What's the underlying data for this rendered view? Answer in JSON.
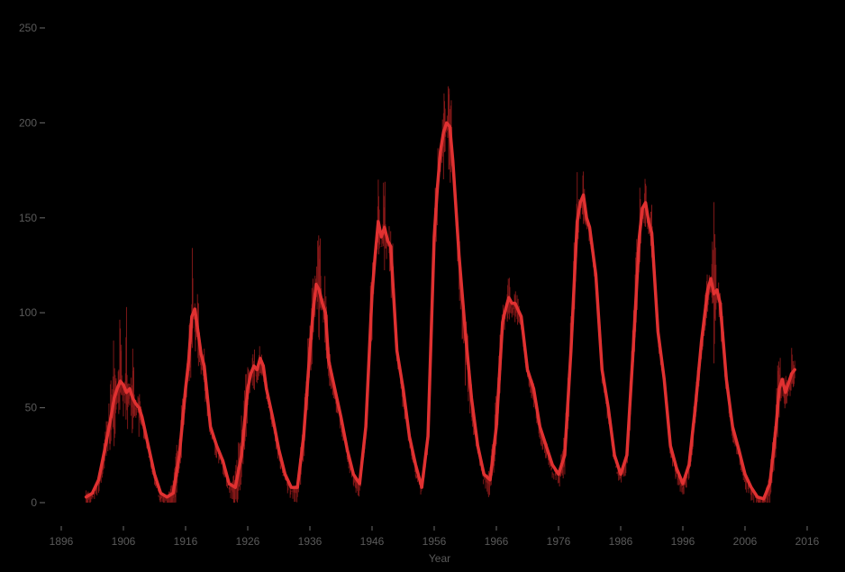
{
  "chart_data": {
    "type": "line",
    "title": "",
    "xlabel": "Year",
    "ylabel": "",
    "xlim": [
      1896,
      2016
    ],
    "ylim": [
      0,
      250
    ],
    "x_ticks": [
      1896,
      1906,
      1916,
      1926,
      1936,
      1946,
      1956,
      1966,
      1976,
      1986,
      1996,
      2006,
      2016
    ],
    "y_ticks": [
      0,
      50,
      100,
      150,
      200,
      250
    ],
    "grid": false,
    "legend": "none",
    "background": "#000000",
    "series": [
      {
        "style": "monthly",
        "color": "#8b1a1a",
        "x": [
          1900.0,
          1901.0,
          1902.0,
          1903.0,
          1904.0,
          1904.5,
          1905.0,
          1905.5,
          1906.0,
          1906.5,
          1907.0,
          1907.5,
          1908.0,
          1908.5,
          1909.0,
          1910.0,
          1911.0,
          1912.0,
          1913.0,
          1914.0,
          1915.0,
          1916.0,
          1916.5,
          1917.0,
          1917.5,
          1918.0,
          1918.5,
          1919.0,
          1920.0,
          1921.0,
          1922.0,
          1923.0,
          1924.0,
          1925.0,
          1926.0,
          1926.5,
          1927.0,
          1927.5,
          1928.0,
          1928.5,
          1929.0,
          1930.0,
          1931.0,
          1932.0,
          1933.0,
          1934.0,
          1935.0,
          1936.0,
          1936.5,
          1937.0,
          1937.5,
          1938.0,
          1938.5,
          1939.0,
          1940.0,
          1941.0,
          1942.0,
          1943.0,
          1944.0,
          1945.0,
          1946.0,
          1946.5,
          1947.0,
          1947.5,
          1948.0,
          1948.5,
          1949.0,
          1950.0,
          1951.0,
          1952.0,
          1953.0,
          1954.0,
          1955.0,
          1956.0,
          1956.5,
          1957.0,
          1957.5,
          1958.0,
          1958.5,
          1959.0,
          1960.0,
          1961.0,
          1962.0,
          1963.0,
          1964.0,
          1965.0,
          1966.0,
          1967.0,
          1967.5,
          1968.0,
          1968.5,
          1969.0,
          1970.0,
          1971.0,
          1972.0,
          1973.0,
          1974.0,
          1975.0,
          1976.0,
          1977.0,
          1978.0,
          1979.0,
          1979.5,
          1980.0,
          1980.5,
          1981.0,
          1982.0,
          1983.0,
          1984.0,
          1985.0,
          1986.0,
          1987.0,
          1988.0,
          1989.0,
          1989.5,
          1990.0,
          1990.5,
          1991.0,
          1992.0,
          1993.0,
          1994.0,
          1995.0,
          1996.0,
          1997.0,
          1998.0,
          1999.0,
          2000.0,
          2000.5,
          2001.0,
          2001.5,
          2002.0,
          2003.0,
          2004.0,
          2005.0,
          2006.0,
          2007.0,
          2008.0,
          2009.0,
          2010.0,
          2011.0,
          2011.5,
          2012.0,
          2012.5,
          2013.0,
          2013.5,
          2014.0
        ],
        "values": [
          10,
          1,
          12,
          36,
          72,
          92,
          55,
          105,
          42,
          108,
          50,
          88,
          40,
          65,
          48,
          22,
          8,
          2,
          3,
          12,
          50,
          62,
          85,
          152,
          68,
          120,
          60,
          88,
          40,
          28,
          20,
          6,
          18,
          48,
          78,
          60,
          95,
          58,
          90,
          70,
          55,
          38,
          20,
          12,
          5,
          12,
          50,
          105,
          130,
          120,
          160,
          98,
          130,
          85,
          62,
          48,
          22,
          14,
          10,
          38,
          140,
          118,
          175,
          120,
          195,
          128,
          165,
          80,
          68,
          28,
          15,
          5,
          40,
          160,
          190,
          170,
          230,
          195,
          250,
          175,
          110,
          60,
          40,
          25,
          10,
          20,
          60,
          110,
          98,
          125,
          95,
          115,
          100,
          70,
          65,
          38,
          35,
          15,
          15,
          40,
          100,
          175,
          148,
          180,
          140,
          150,
          110,
          65,
          40,
          18,
          10,
          28,
          100,
          170,
          148,
          175,
          138,
          165,
          90,
          60,
          28,
          15,
          8,
          25,
          60,
          90,
          125,
          118,
          165,
          110,
          125,
          65,
          40,
          28,
          15,
          8,
          4,
          2,
          18,
          55,
          92,
          60,
          75,
          55,
          85,
          75
        ]
      },
      {
        "style": "smoothed",
        "color": "#e03131",
        "x": [
          1900.0,
          1901.0,
          1902.0,
          1903.0,
          1904.0,
          1904.5,
          1905.0,
          1905.5,
          1906.0,
          1906.5,
          1907.0,
          1907.5,
          1908.0,
          1908.5,
          1909.0,
          1910.0,
          1911.0,
          1912.0,
          1913.0,
          1914.0,
          1915.0,
          1916.0,
          1916.5,
          1917.0,
          1917.5,
          1918.0,
          1918.5,
          1919.0,
          1920.0,
          1921.0,
          1922.0,
          1923.0,
          1924.0,
          1925.0,
          1926.0,
          1926.5,
          1927.0,
          1927.5,
          1928.0,
          1928.5,
          1929.0,
          1930.0,
          1931.0,
          1932.0,
          1933.0,
          1934.0,
          1935.0,
          1936.0,
          1936.5,
          1937.0,
          1937.5,
          1938.0,
          1938.5,
          1939.0,
          1940.0,
          1941.0,
          1942.0,
          1943.0,
          1944.0,
          1945.0,
          1946.0,
          1946.5,
          1947.0,
          1947.5,
          1948.0,
          1948.5,
          1949.0,
          1950.0,
          1951.0,
          1952.0,
          1953.0,
          1954.0,
          1955.0,
          1956.0,
          1956.5,
          1957.0,
          1957.5,
          1958.0,
          1958.5,
          1959.0,
          1960.0,
          1961.0,
          1962.0,
          1963.0,
          1964.0,
          1965.0,
          1966.0,
          1967.0,
          1967.5,
          1968.0,
          1968.5,
          1969.0,
          1970.0,
          1971.0,
          1972.0,
          1973.0,
          1974.0,
          1975.0,
          1976.0,
          1977.0,
          1978.0,
          1979.0,
          1979.5,
          1980.0,
          1980.5,
          1981.0,
          1982.0,
          1983.0,
          1984.0,
          1985.0,
          1986.0,
          1987.0,
          1988.0,
          1989.0,
          1989.5,
          1990.0,
          1990.5,
          1991.0,
          1992.0,
          1993.0,
          1994.0,
          1995.0,
          1996.0,
          1997.0,
          1998.0,
          1999.0,
          2000.0,
          2000.5,
          2001.0,
          2001.5,
          2002.0,
          2003.0,
          2004.0,
          2005.0,
          2006.0,
          2007.0,
          2008.0,
          2009.0,
          2010.0,
          2011.0,
          2011.5,
          2012.0,
          2012.5,
          2013.0,
          2013.5,
          2014.0
        ],
        "values": [
          3,
          5,
          12,
          28,
          45,
          55,
          60,
          64,
          62,
          58,
          60,
          55,
          52,
          50,
          45,
          30,
          15,
          5,
          3,
          5,
          25,
          60,
          75,
          98,
          102,
          90,
          78,
          72,
          40,
          30,
          22,
          10,
          8,
          25,
          60,
          68,
          72,
          70,
          76,
          72,
          60,
          45,
          28,
          15,
          8,
          8,
          35,
          80,
          100,
          115,
          112,
          105,
          100,
          75,
          60,
          45,
          28,
          15,
          10,
          40,
          110,
          130,
          148,
          140,
          145,
          138,
          135,
          80,
          60,
          35,
          20,
          8,
          35,
          140,
          165,
          185,
          195,
          200,
          198,
          180,
          130,
          90,
          55,
          30,
          15,
          12,
          40,
          95,
          102,
          108,
          105,
          105,
          98,
          70,
          60,
          40,
          30,
          20,
          15,
          25,
          80,
          148,
          158,
          162,
          150,
          145,
          120,
          70,
          50,
          25,
          15,
          25,
          80,
          140,
          155,
          158,
          148,
          142,
          90,
          65,
          30,
          18,
          10,
          20,
          50,
          85,
          112,
          118,
          110,
          112,
          105,
          65,
          40,
          28,
          15,
          8,
          3,
          2,
          10,
          40,
          60,
          65,
          58,
          63,
          68,
          70
        ]
      }
    ]
  }
}
